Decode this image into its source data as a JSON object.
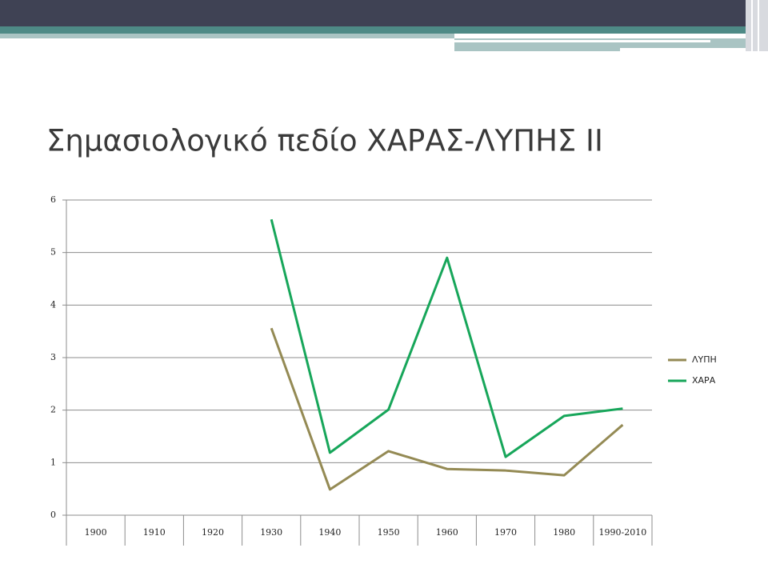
{
  "chart_data": {
    "type": "line",
    "title": "Σημασιολογικό πεδίο ΧΑΡΑΣ-ΛΥΠΗΣ ΙΙ",
    "categories": [
      "1900",
      "1910",
      "1920",
      "1930",
      "1940",
      "1950",
      "1960",
      "1970",
      "1980",
      "1990-2010"
    ],
    "series": [
      {
        "name": "ΛΥΠΗ",
        "color": "#948a54",
        "values": [
          null,
          null,
          null,
          3.56,
          0.49,
          1.22,
          0.88,
          0.85,
          0.76,
          1.72
        ]
      },
      {
        "name": "ΧΑΡΑ",
        "color": "#17a65a",
        "values": [
          null,
          null,
          null,
          5.63,
          1.19,
          2.01,
          4.9,
          1.11,
          1.89,
          2.03
        ]
      }
    ],
    "ylim": [
      0,
      6
    ],
    "yticks": [
      0,
      1,
      2,
      3,
      4,
      5,
      6
    ],
    "grid": true,
    "legend": "right"
  }
}
